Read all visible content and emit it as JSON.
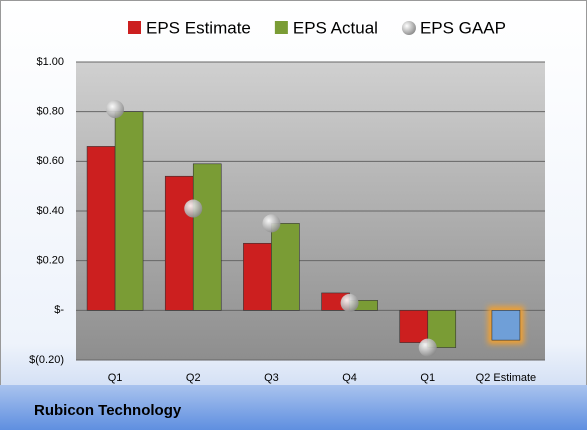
{
  "chart_data": {
    "type": "bar",
    "annotation": "Rubicon Technology",
    "categories": [
      "Q1",
      "Q2",
      "Q3",
      "Q4",
      "Q1",
      "Q2 Estimate"
    ],
    "series": [
      {
        "name": "EPS Estimate",
        "color": "#cc1f1f",
        "values": [
          0.66,
          0.54,
          0.27,
          0.07,
          -0.13,
          -0.12
        ]
      },
      {
        "name": "EPS Actual",
        "color": "#7a9c35",
        "values": [
          0.8,
          0.59,
          0.35,
          0.04,
          -0.15,
          null
        ]
      },
      {
        "name": "EPS GAAP",
        "color": "#a8a8a8",
        "marker": "circle",
        "values": [
          0.81,
          0.41,
          0.35,
          0.03,
          -0.15,
          null
        ]
      }
    ],
    "highlight_color": "#6f9fd8",
    "highlight_glow": "#f0a030",
    "ylim": [
      -0.2,
      1.0
    ],
    "yticks": [
      {
        "value": -0.2,
        "label": "$(0.20)"
      },
      {
        "value": 0,
        "label": "$-"
      },
      {
        "value": 0.2,
        "label": "$0.20"
      },
      {
        "value": 0.4,
        "label": "$0.40"
      },
      {
        "value": 0.6,
        "label": "$0.60"
      },
      {
        "value": 0.8,
        "label": "$0.80"
      },
      {
        "value": 1.0,
        "label": "$1.00"
      }
    ],
    "grid": true
  }
}
